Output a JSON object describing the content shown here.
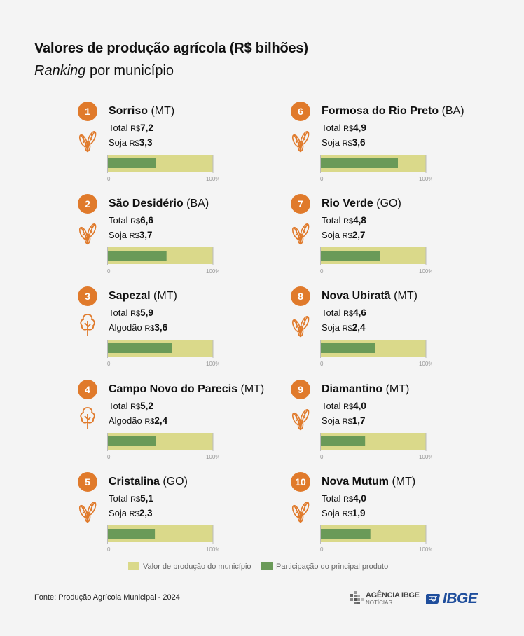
{
  "title": "Valores de produção agrícola (R$ bilhões)",
  "subtitle_em": "Ranking",
  "subtitle_rest": " por município",
  "chart_data": {
    "type": "bar",
    "axis": {
      "min": 0,
      "max_label": "100%",
      "min_label": "0"
    },
    "items": [
      {
        "rank": "1",
        "name": "Sorriso",
        "state": "(MT)",
        "total_label": "Total",
        "total": "7,2",
        "product": "Soja",
        "product_value": "3,3",
        "icon": "soy-icon",
        "share": 0.458
      },
      {
        "rank": "2",
        "name": "São Desidério",
        "state": "(BA)",
        "total_label": "Total",
        "total": "6,6",
        "product": "Soja",
        "product_value": "3,7",
        "icon": "soy-icon",
        "share": 0.561
      },
      {
        "rank": "3",
        "name": "Sapezal",
        "state": "(MT)",
        "total_label": "Total",
        "total": "5,9",
        "product": "Algodão",
        "product_value": "3,6",
        "icon": "cotton-icon",
        "share": 0.61
      },
      {
        "rank": "4",
        "name": "Campo Novo do Parecis",
        "state": "(MT)",
        "total_label": "Total",
        "total": "5,2",
        "product": "Algodão",
        "product_value": "2,4",
        "icon": "cotton-icon",
        "share": 0.462
      },
      {
        "rank": "5",
        "name": "Cristalina",
        "state": "(GO)",
        "total_label": "Total",
        "total": "5,1",
        "product": "Soja",
        "product_value": "2,3",
        "icon": "soy-icon",
        "share": 0.451
      },
      {
        "rank": "6",
        "name": "Formosa do Rio Preto",
        "state": "(BA)",
        "total_label": "Total",
        "total": "4,9",
        "product": "Soja",
        "product_value": "3,6",
        "icon": "soy-icon",
        "share": 0.735
      },
      {
        "rank": "7",
        "name": "Rio Verde",
        "state": "(GO)",
        "total_label": "Total",
        "total": "4,8",
        "product": "Soja",
        "product_value": "2,7",
        "icon": "soy-icon",
        "share": 0.563
      },
      {
        "rank": "8",
        "name": "Nova Ubiratã",
        "state": "(MT)",
        "total_label": "Total",
        "total": "4,6",
        "product": "Soja",
        "product_value": "2,4",
        "icon": "soy-icon",
        "share": 0.522
      },
      {
        "rank": "9",
        "name": "Diamantino",
        "state": "(MT)",
        "total_label": "Total",
        "total": "4,0",
        "product": "Soja",
        "product_value": "1,7",
        "icon": "soy-icon",
        "share": 0.425
      },
      {
        "rank": "10",
        "name": "Nova Mutum",
        "state": "(MT)",
        "total_label": "Total",
        "total": "4,0",
        "product": "Soja",
        "product_value": "1,9",
        "icon": "soy-icon",
        "share": 0.475
      }
    ],
    "legend": [
      {
        "label": "Valor de produção do município",
        "color": "#dad98a"
      },
      {
        "label": "Participação do principal produto",
        "color": "#6a9a58"
      }
    ]
  },
  "currency": "R$",
  "colors": {
    "badge": "#e07a2b",
    "background_bar": "#dad98a",
    "product_bar": "#6a9a58",
    "icon": "#e07a2b",
    "brand_blue": "#1f4e9c"
  },
  "source": "Fonte: Produção Agrícola Municipal - 2024",
  "logos": {
    "agencia_line1": "AGÊNCIA IBGE",
    "agencia_line2": "NOTÍCIAS",
    "ibge": "IBGE"
  }
}
